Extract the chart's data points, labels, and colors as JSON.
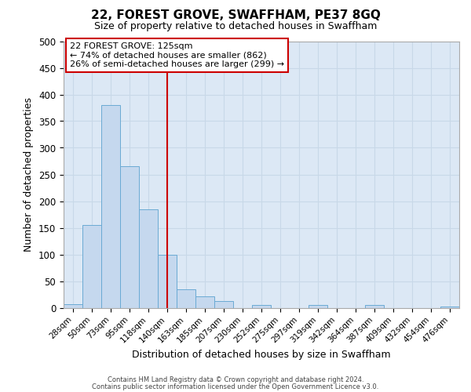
{
  "title": "22, FOREST GROVE, SWAFFHAM, PE37 8GQ",
  "subtitle": "Size of property relative to detached houses in Swaffham",
  "xlabel": "Distribution of detached houses by size in Swaffham",
  "ylabel": "Number of detached properties",
  "bar_labels": [
    "28sqm",
    "50sqm",
    "73sqm",
    "95sqm",
    "118sqm",
    "140sqm",
    "163sqm",
    "185sqm",
    "207sqm",
    "230sqm",
    "252sqm",
    "275sqm",
    "297sqm",
    "319sqm",
    "342sqm",
    "364sqm",
    "387sqm",
    "409sqm",
    "432sqm",
    "454sqm",
    "476sqm"
  ],
  "bar_values": [
    7,
    155,
    380,
    265,
    185,
    100,
    35,
    22,
    12,
    0,
    5,
    0,
    0,
    5,
    0,
    0,
    5,
    0,
    0,
    0,
    2
  ],
  "bar_color": "#c5d8ee",
  "bar_edge_color": "#6aaad4",
  "ylim": [
    0,
    500
  ],
  "yticks": [
    0,
    50,
    100,
    150,
    200,
    250,
    300,
    350,
    400,
    450,
    500
  ],
  "vline_x": 5.0,
  "vline_color": "#cc0000",
  "annotation_title": "22 FOREST GROVE: 125sqm",
  "annotation_line1": "← 74% of detached houses are smaller (862)",
  "annotation_line2": "26% of semi-detached houses are larger (299) →",
  "annotation_box_color": "#ffffff",
  "annotation_box_edge": "#cc0000",
  "footer_line1": "Contains HM Land Registry data © Crown copyright and database right 2024.",
  "footer_line2": "Contains public sector information licensed under the Open Government Licence v3.0.",
  "background_color": "#ffffff",
  "grid_color": "#c8d8e8",
  "ax_bg_color": "#dce8f5"
}
